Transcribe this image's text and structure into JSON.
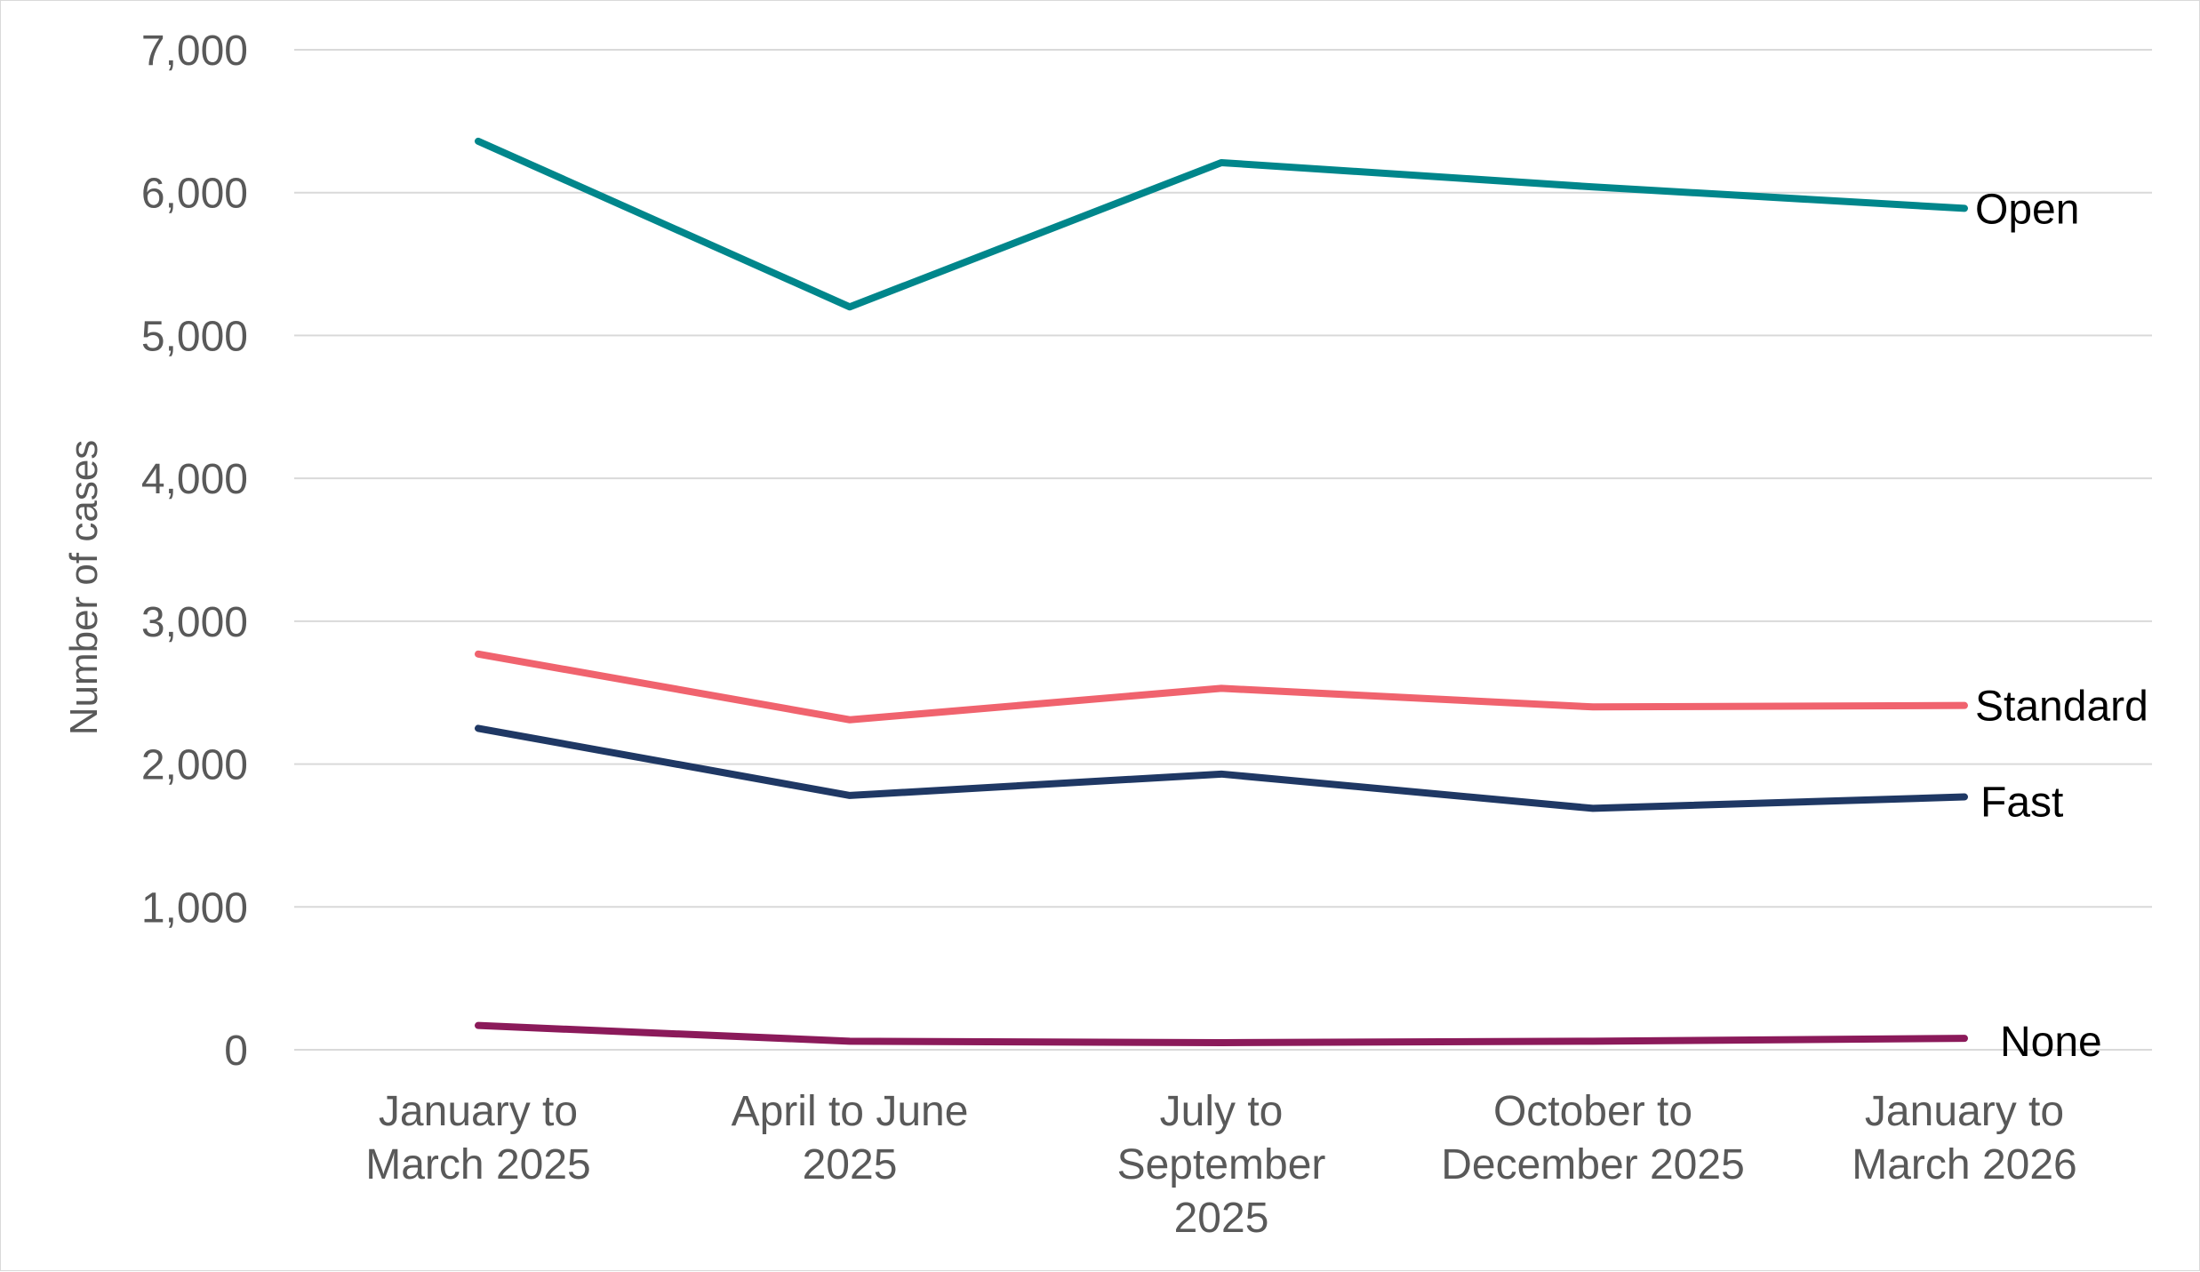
{
  "chart_data": {
    "type": "line",
    "ylabel": "Number of cases",
    "ylim": [
      0,
      7000
    ],
    "yticks": [
      "0",
      "1,000",
      "2,000",
      "3,000",
      "4,000",
      "5,000",
      "6,000",
      "7,000"
    ],
    "ytick_values": [
      0,
      1000,
      2000,
      3000,
      4000,
      5000,
      6000,
      7000
    ],
    "categories": [
      [
        "January to",
        "March 2025"
      ],
      [
        "April to June",
        "2025"
      ],
      [
        "July to",
        "September",
        "2025"
      ],
      [
        "October to",
        "December 2025"
      ],
      [
        "January to",
        "March 2026"
      ]
    ],
    "grid": true,
    "legend": "labels at line ends (right)",
    "series": [
      {
        "name": "Open",
        "color": "#00868B",
        "values": [
          6360,
          5200,
          6210,
          6040,
          5890
        ]
      },
      {
        "name": "Standard",
        "color": "#F0636E",
        "values": [
          2770,
          2310,
          2530,
          2400,
          2410
        ]
      },
      {
        "name": "Fast",
        "color": "#1F3864",
        "values": [
          2250,
          1780,
          1930,
          1690,
          1770
        ]
      },
      {
        "name": "None",
        "color": "#8B1A5A",
        "values": [
          170,
          60,
          50,
          60,
          80
        ]
      }
    ]
  }
}
